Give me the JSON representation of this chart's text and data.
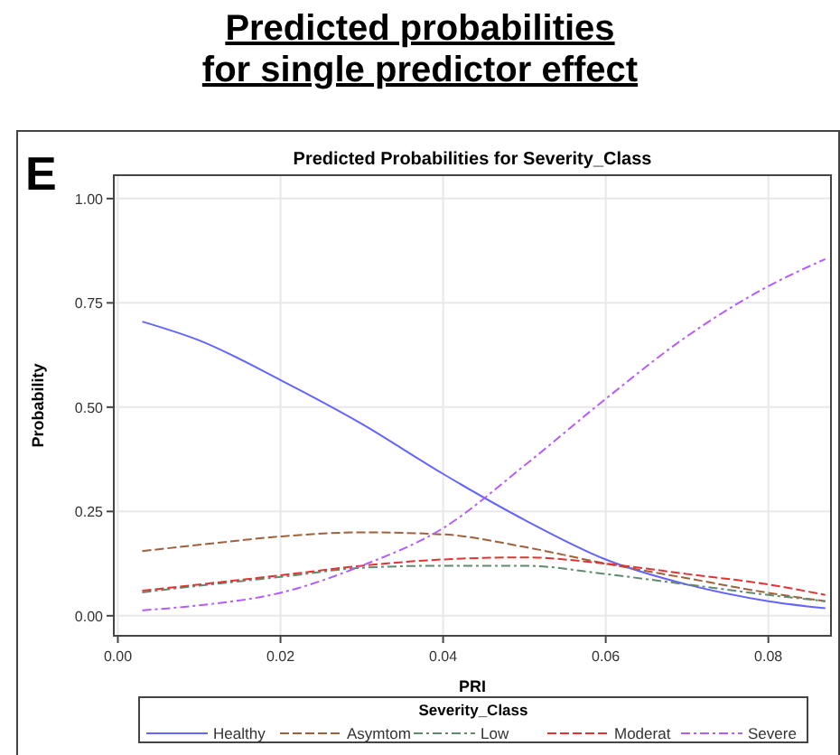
{
  "chart_data": {
    "type": "line",
    "title": "Predicted probabilities\nfor single predictor effect",
    "subtitle": "Predicted Probabilities for Severity_Class",
    "annotations": [
      "E"
    ],
    "xlabel": "PRI",
    "ylabel": "Probability",
    "legend_title": "Severity_Class",
    "legend": "bottom",
    "grid": true,
    "x": [
      0.003,
      0.01,
      0.02,
      0.03,
      0.04,
      0.05,
      0.06,
      0.07,
      0.08,
      0.087
    ],
    "xlim": [
      -0.0005,
      0.0877
    ],
    "xticks": [
      {
        "value": 0,
        "label": "0.00"
      },
      {
        "value": 0.02,
        "label": "0.02"
      },
      {
        "value": 0.04,
        "label": "0.04"
      },
      {
        "value": 0.06,
        "label": "0.06"
      },
      {
        "value": 0.08,
        "label": "0.08"
      }
    ],
    "ylim": [
      -0.048,
      1.056
    ],
    "yticks": [
      {
        "value": 0,
        "label": "0.00"
      },
      {
        "value": 0.25,
        "label": "0.25"
      },
      {
        "value": 0.5,
        "label": "0.50"
      },
      {
        "value": 0.75,
        "label": "0.75"
      },
      {
        "value": 1,
        "label": "1.00"
      }
    ],
    "series": [
      {
        "name": "Healthy",
        "color": "#6464ff",
        "line_style": "solid",
        "values": [
          0.705,
          0.66,
          0.565,
          0.46,
          0.34,
          0.23,
          0.135,
          0.075,
          0.035,
          0.018
        ]
      },
      {
        "name": "Asymtom",
        "color": "#a0603c",
        "line_style": "dashed",
        "values": [
          0.155,
          0.17,
          0.19,
          0.2,
          0.195,
          0.165,
          0.125,
          0.09,
          0.055,
          0.035
        ]
      },
      {
        "name": "Low",
        "color": "#5f8a6f",
        "line_style": "dashdot",
        "values": [
          0.056,
          0.072,
          0.093,
          0.115,
          0.12,
          0.12,
          0.1,
          0.075,
          0.05,
          0.035
        ]
      },
      {
        "name": "Moderat",
        "color": "#e03434",
        "line_style": "dashed",
        "values": [
          0.06,
          0.075,
          0.097,
          0.12,
          0.135,
          0.14,
          0.125,
          0.1,
          0.075,
          0.05
        ]
      },
      {
        "name": "Severe",
        "color": "#b45cff",
        "line_style": "dashdot",
        "values": [
          0.013,
          0.025,
          0.055,
          0.12,
          0.21,
          0.36,
          0.52,
          0.67,
          0.79,
          0.855
        ]
      }
    ]
  }
}
